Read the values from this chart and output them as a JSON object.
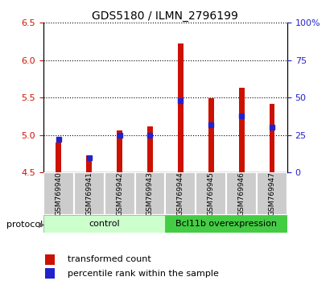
{
  "title": "GDS5180 / ILMN_2796199",
  "samples": [
    "GSM769940",
    "GSM769941",
    "GSM769942",
    "GSM769943",
    "GSM769944",
    "GSM769945",
    "GSM769946",
    "GSM769947"
  ],
  "transformed_count": [
    4.9,
    4.73,
    5.06,
    5.11,
    6.22,
    5.49,
    5.63,
    5.42
  ],
  "percentile_rank": [
    22,
    10,
    25,
    25,
    48,
    32,
    38,
    30
  ],
  "ylim_left": [
    4.5,
    6.5
  ],
  "ylim_right": [
    0,
    100
  ],
  "yticks_left": [
    4.5,
    5.0,
    5.5,
    6.0,
    6.5
  ],
  "yticks_right": [
    0,
    25,
    50,
    75,
    100
  ],
  "ytick_labels_right": [
    "0",
    "25",
    "50",
    "75",
    "100%"
  ],
  "bar_color": "#cc1100",
  "percentile_color": "#2222cc",
  "bar_bottom": 4.5,
  "control_label": "control",
  "overexpression_label": "Bcl11b overexpression",
  "control_bg": "#ccffcc",
  "overexpression_bg": "#44cc44",
  "protocol_label": "protocol",
  "legend_transformed": "transformed count",
  "legend_percentile": "percentile rank within the sample",
  "sample_bg": "#cccccc",
  "bar_width": 0.18
}
